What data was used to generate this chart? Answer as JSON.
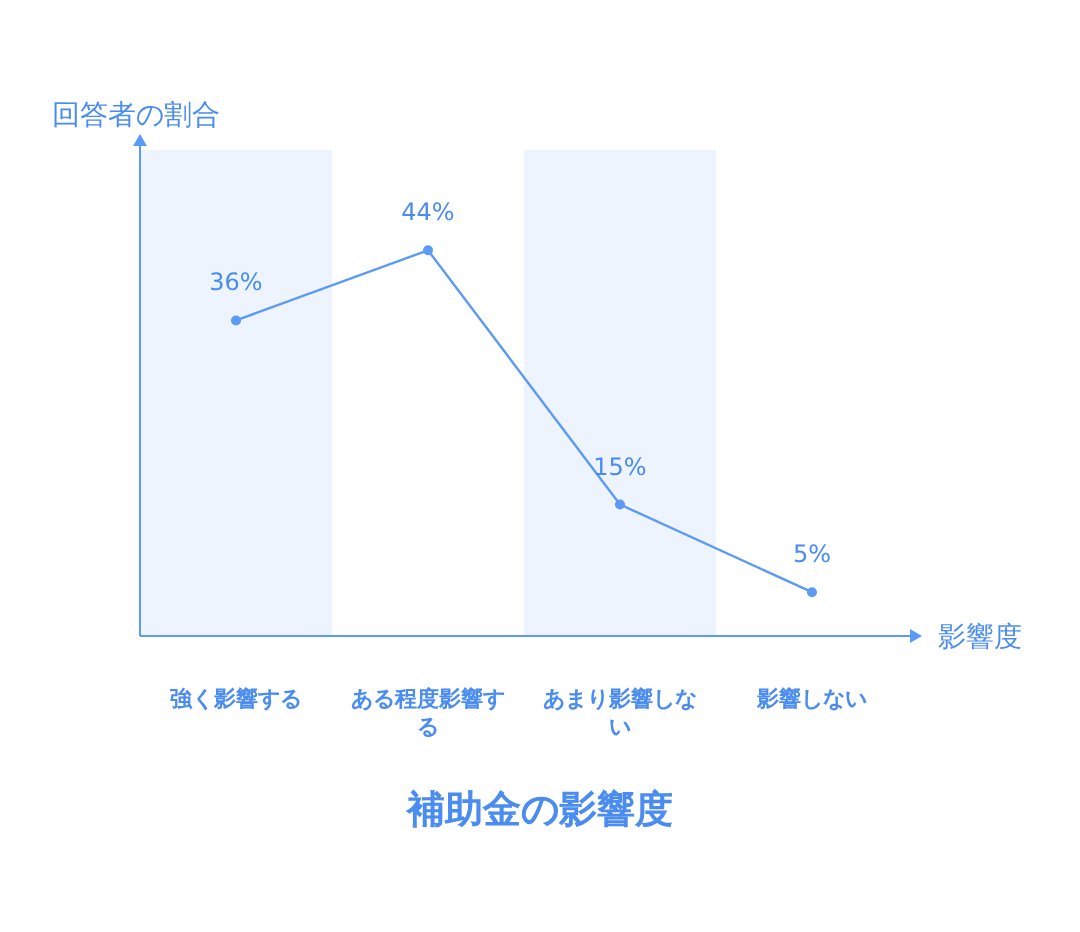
{
  "chart_data": {
    "type": "line",
    "title": "補助金の影響度",
    "xlabel": "影響度",
    "ylabel": "回答者の割合",
    "categories": [
      "強く影響する",
      "ある程度影響する",
      "あまり影響しない",
      "影響しない"
    ],
    "series": [
      {
        "color": "#5b9af5",
        "values": [
          36,
          44,
          15,
          5
        ],
        "value_labels": [
          "36%",
          "44%",
          "15%",
          "5%"
        ]
      }
    ],
    "marker": "circle",
    "bands": [
      {
        "axis": "x",
        "from": "強く影響する",
        "to": "強く影響する",
        "color": "#eef4fd"
      },
      {
        "axis": "x",
        "from": "あまり影響しない",
        "to": "あまり影響しない",
        "color": "#eef4fd"
      }
    ]
  }
}
